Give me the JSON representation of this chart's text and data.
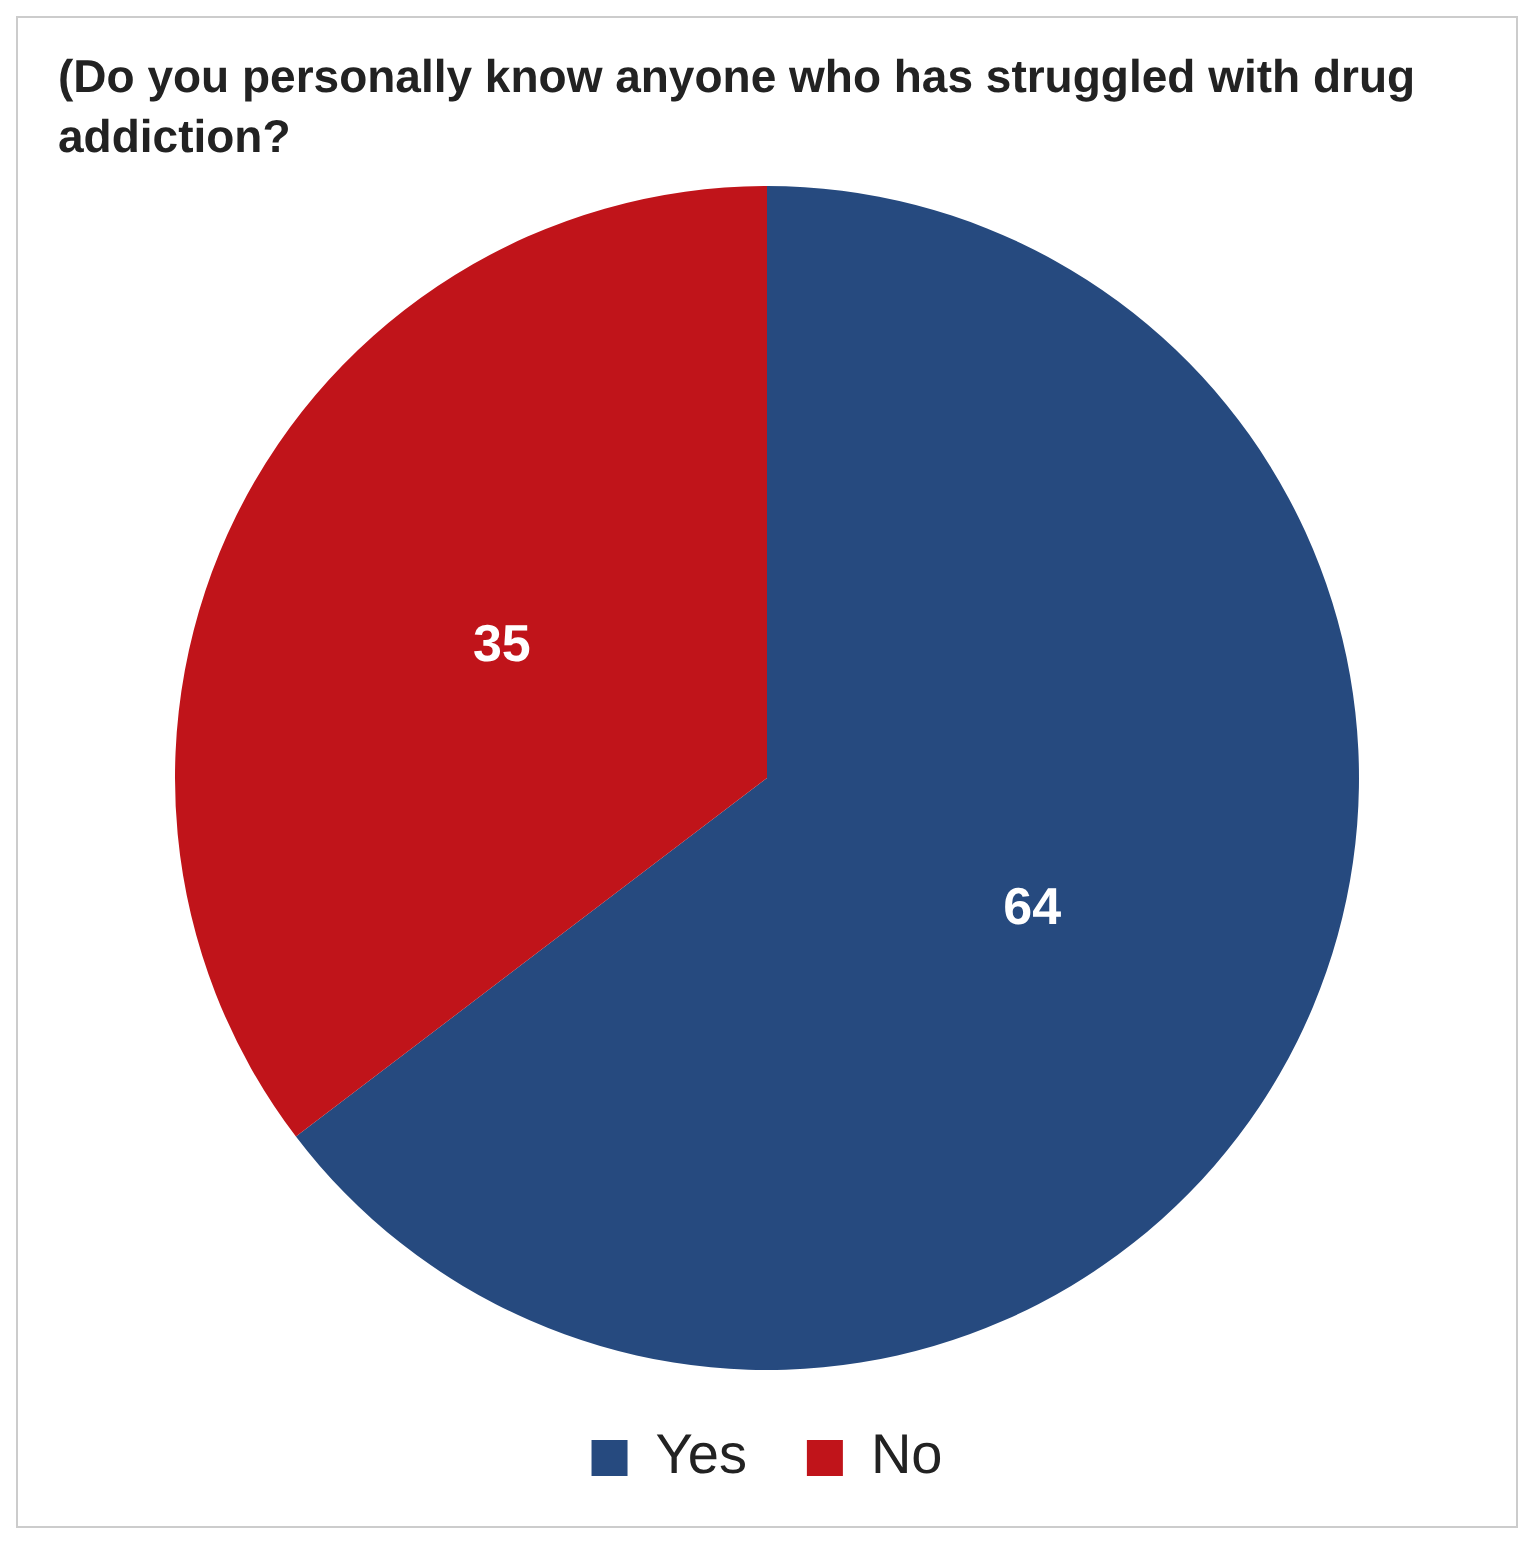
{
  "chart_data": {
    "type": "pie",
    "title": "(Do you personally know anyone who has struggled with drug addiction?",
    "categories": [
      "Yes",
      "No"
    ],
    "values": [
      64,
      35
    ],
    "colors": [
      "#264a7f",
      "#c0141a"
    ],
    "data_labels": true,
    "legend": "bottom"
  }
}
